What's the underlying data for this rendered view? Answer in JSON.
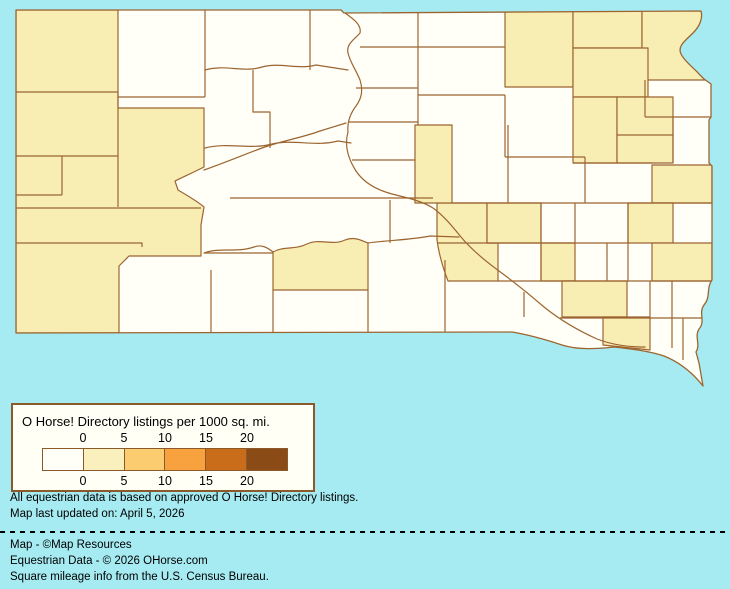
{
  "legend": {
    "title": "O Horse! Directory listings per 1000 sq. mi.",
    "tick_labels": [
      "0",
      "5",
      "10",
      "15",
      "20"
    ],
    "swatch_colors": [
      "#fffff8",
      "#faf0be",
      "#fbcd70",
      "#f7a13f",
      "#c96d1b",
      "#8a4b17"
    ]
  },
  "notes": {
    "line1": "All equestrian data is based on approved O Horse! Directory listings.",
    "line2": "Map last updated on: April 5, 2026"
  },
  "credits": {
    "line1": "Map - ©Map Resources",
    "line2": "Equestrian Data - © 2026 OHorse.com",
    "line3": "Square mileage info from the U.S. Census Bureau."
  },
  "colors": {
    "water_background": "#a6ebf2",
    "county_unshaded": "#fffff8",
    "county_shaded": "#f8eeb4",
    "county_border": "#9c6530",
    "legend_border": "#8b5a2b",
    "legend_background": "#fffff6",
    "text": "#000000"
  }
}
